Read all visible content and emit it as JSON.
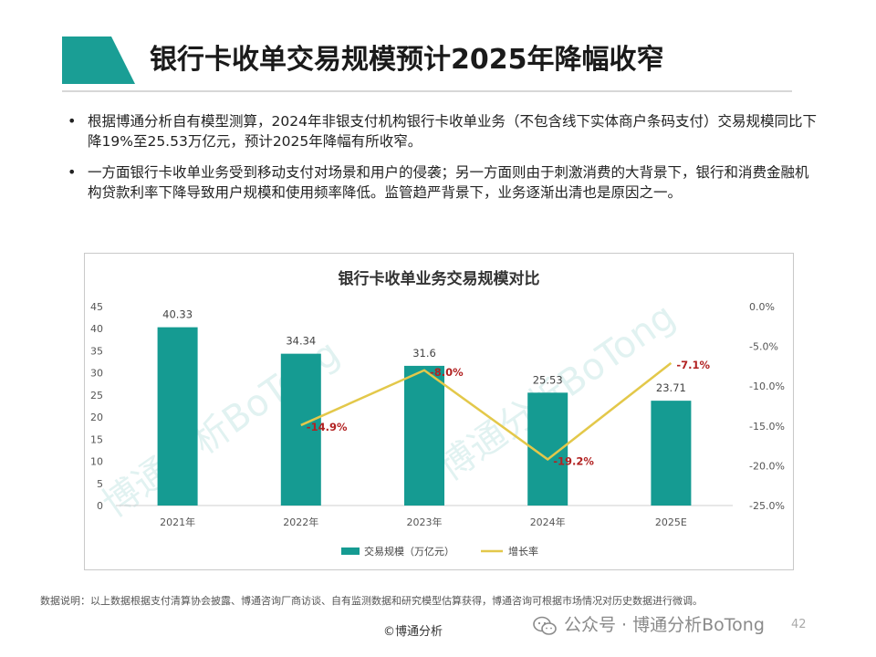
{
  "slide": {
    "title": "银行卡收单交易规模预计2025年降幅收窄",
    "bullets": [
      "根据博通分析自有模型测算，2024年非银支付机构银行卡收单业务（不包含线下实体商户条码支付）交易规模同比下降19%至25.53万亿元，预计2025年降幅有所收窄。",
      "一方面银行卡收单业务受到移动支付对场景和用户的侵袭；另一方面则由于刺激消费的大背景下，银行和消费金融机构贷款利率下降导致用户规模和使用频率降低。监管趋严背景下，业务逐渐出清也是原因之一。"
    ],
    "note": "数据说明：以上数据根据支付清算协会披露、博通咨询厂商访谈、自有监测数据和研究模型估算获得，博通咨询可根据市场情况对历史数据进行微调。",
    "footer_left": "©博通分析",
    "footer_right": "公众号 · 博通分析BoTong",
    "page_number": "42",
    "watermark": "博通分析BoTong",
    "accent_color": "#1a9e95",
    "icon": "wechat-icon"
  },
  "chart_data": {
    "type": "bar",
    "title": "银行卡收单业务交易规模对比",
    "categories": [
      "2021年",
      "2022年",
      "2023年",
      "2024年",
      "2025E"
    ],
    "y_ticks": [
      "0",
      "5",
      "10",
      "15",
      "20",
      "25",
      "30",
      "35",
      "40",
      "45"
    ],
    "y2_ticks": [
      "0.0%",
      "-5.0%",
      "-10.0%",
      "-15.0%",
      "-20.0%",
      "-25.0%"
    ],
    "ylim": [
      0,
      45
    ],
    "y2lim": [
      -25,
      0
    ],
    "legend_position": "bottom",
    "grid": false,
    "series": [
      {
        "name": "交易规模（万亿元）",
        "kind": "bar",
        "color": "#159b92",
        "values": [
          40.33,
          34.34,
          31.6,
          25.53,
          23.71
        ],
        "labels": [
          "40.33",
          "34.34",
          "31.6",
          "25.53",
          "23.71"
        ]
      },
      {
        "name": "增长率",
        "kind": "line",
        "color": "#e3c84a",
        "label_color": "#b22222",
        "values": [
          null,
          -14.9,
          -8.0,
          -19.2,
          -7.1
        ],
        "labels": [
          "",
          "-14.9%",
          "-8.0%",
          "-19.2%",
          "-7.1%"
        ]
      }
    ]
  }
}
